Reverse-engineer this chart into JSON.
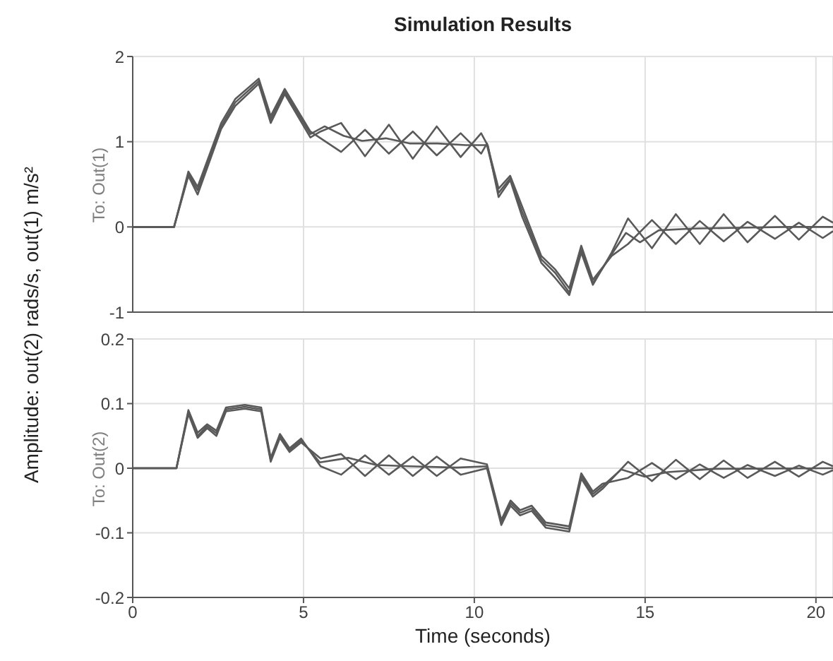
{
  "chart_data": [
    {
      "type": "line",
      "title": "Simulation Results",
      "ylabel": "Amplitude: out(2) rads/s, out(1) m/s²",
      "annotations": [
        "To: Out(1)"
      ],
      "xlim": [
        0,
        20.5
      ],
      "xticks": [
        0,
        5,
        10,
        15,
        20
      ],
      "ylim": [
        -1,
        2
      ],
      "yticks": [
        -1,
        0,
        1,
        2
      ],
      "grid": true,
      "tick_labels": "y",
      "marker": "none",
      "line_style": "solid",
      "legend": false,
      "series": [
        {
          "color": "#595959",
          "x": [
            0,
            1.21,
            1.63,
            1.9,
            2.59,
            3.0,
            3.69,
            4.04,
            4.45,
            5.2,
            5.62,
            6.17,
            6.72,
            7.41,
            8.1,
            8.93,
            9.75,
            10.37,
            10.71,
            11.05,
            11.4,
            11.96,
            12.37,
            12.78,
            13.13,
            13.47,
            14.02,
            14.44,
            14.85,
            15.4,
            16.36,
            17.74,
            19.12,
            20.5
          ],
          "values": [
            0,
            0,
            0.62,
            0.43,
            1.18,
            1.46,
            1.71,
            1.26,
            1.59,
            1.09,
            1.18,
            1.07,
            1.01,
            1.04,
            0.98,
            0.98,
            0.96,
            0.96,
            0.4,
            0.57,
            0.18,
            -0.38,
            -0.54,
            -0.77,
            -0.27,
            -0.66,
            -0.32,
            -0.07,
            -0.18,
            -0.04,
            -0.02,
            -0.01,
            0,
            0
          ]
        },
        {
          "color": "#595959",
          "x": [
            0,
            1.21,
            1.63,
            1.9,
            2.59,
            3.0,
            3.69,
            4.04,
            4.45,
            5.2,
            5.5,
            6.1,
            6.8,
            7.5,
            8.2,
            8.9,
            9.6,
            10.2,
            10.4,
            10.71,
            11.05,
            11.4,
            11.96,
            12.37,
            12.78,
            13.13,
            13.47,
            14.02,
            14.5,
            15.2,
            15.9,
            16.6,
            17.3,
            18.0,
            18.8,
            19.5,
            20.2,
            20.5
          ],
          "values": [
            0,
            0,
            0.6,
            0.38,
            1.15,
            1.42,
            1.68,
            1.22,
            1.56,
            1.05,
            1.12,
            1.22,
            0.83,
            1.2,
            0.8,
            1.18,
            0.82,
            1.1,
            0.95,
            0.35,
            0.55,
            0.12,
            -0.42,
            -0.6,
            -0.8,
            -0.3,
            -0.68,
            -0.3,
            0.1,
            -0.25,
            0.15,
            -0.2,
            0.15,
            -0.18,
            0.13,
            -0.15,
            0.12,
            0.05
          ]
        },
        {
          "color": "#595959",
          "x": [
            0,
            1.21,
            1.63,
            1.9,
            2.59,
            3.0,
            3.69,
            4.04,
            4.45,
            5.2,
            6.1,
            6.8,
            7.5,
            8.2,
            8.9,
            9.6,
            10.2,
            10.37,
            10.71,
            11.05,
            11.4,
            11.96,
            12.37,
            12.78,
            13.13,
            13.47,
            14.02,
            14.5,
            15.2,
            15.9,
            16.6,
            17.3,
            18.0,
            18.8,
            19.5,
            20.2,
            20.5
          ],
          "values": [
            0,
            0,
            0.65,
            0.47,
            1.22,
            1.5,
            1.74,
            1.3,
            1.62,
            1.12,
            0.88,
            1.14,
            0.86,
            1.12,
            0.84,
            1.1,
            0.86,
            0.98,
            0.45,
            0.6,
            0.24,
            -0.34,
            -0.5,
            -0.72,
            -0.22,
            -0.62,
            -0.34,
            -0.2,
            0.08,
            -0.2,
            0.07,
            -0.17,
            0.06,
            -0.14,
            0.05,
            -0.13,
            -0.05
          ]
        }
      ]
    },
    {
      "type": "line",
      "xlabel": "Time (seconds)",
      "annotations": [
        "To: Out(2)"
      ],
      "xlim": [
        0,
        20.5
      ],
      "xticks": [
        0,
        5,
        10,
        15,
        20
      ],
      "ylim": [
        -0.2,
        0.2
      ],
      "yticks": [
        -0.2,
        -0.1,
        0,
        0.1,
        0.2
      ],
      "grid": true,
      "marker": "none",
      "line_style": "solid",
      "legend": false,
      "series": [
        {
          "color": "#595959",
          "x": [
            0,
            1.28,
            1.63,
            1.9,
            2.18,
            2.45,
            2.73,
            3.28,
            3.76,
            4.04,
            4.31,
            4.59,
            4.93,
            5.48,
            6.31,
            7.13,
            8.1,
            9.48,
            10.37,
            10.79,
            11.06,
            11.34,
            11.68,
            12.09,
            12.78,
            13.13,
            13.47,
            13.75,
            14.3,
            14.99,
            15.67,
            17.05,
            20.5
          ],
          "values": [
            0,
            0,
            0.087,
            0.05,
            0.065,
            0.054,
            0.091,
            0.095,
            0.091,
            0.013,
            0.05,
            0.028,
            0.043,
            0.009,
            0.016,
            0.005,
            0.003,
            0.001,
            0.003,
            -0.084,
            -0.054,
            -0.069,
            -0.062,
            -0.088,
            -0.094,
            -0.012,
            -0.04,
            -0.028,
            -0.002,
            -0.013,
            -0.006,
            -0.001,
            0
          ]
        },
        {
          "color": "#595959",
          "x": [
            0,
            1.28,
            1.63,
            1.9,
            2.18,
            2.45,
            2.73,
            3.28,
            3.76,
            4.04,
            4.31,
            4.59,
            4.93,
            5.5,
            6.1,
            6.8,
            7.5,
            8.2,
            8.9,
            9.6,
            10.37,
            10.79,
            11.06,
            11.34,
            11.68,
            12.09,
            12.78,
            13.13,
            13.47,
            13.75,
            14.5,
            15.2,
            15.9,
            16.6,
            17.3,
            18.0,
            18.8,
            19.5,
            20.2,
            20.5
          ],
          "values": [
            0,
            0,
            0.084,
            0.047,
            0.062,
            0.05,
            0.088,
            0.092,
            0.088,
            0.01,
            0.047,
            0.025,
            0.04,
            0.015,
            0.022,
            -0.012,
            0.02,
            -0.012,
            0.018,
            -0.01,
            0,
            -0.088,
            -0.058,
            -0.073,
            -0.066,
            -0.092,
            -0.098,
            -0.016,
            -0.044,
            -0.032,
            0.01,
            -0.02,
            0.013,
            -0.017,
            0.012,
            -0.015,
            0.01,
            -0.013,
            0.01,
            0.003
          ]
        },
        {
          "color": "#595959",
          "x": [
            0,
            1.28,
            1.63,
            1.9,
            2.18,
            2.45,
            2.73,
            3.28,
            3.76,
            4.04,
            4.31,
            4.59,
            4.93,
            5.5,
            6.1,
            6.8,
            7.5,
            8.2,
            8.9,
            9.6,
            10.37,
            10.79,
            11.06,
            11.34,
            11.68,
            12.09,
            12.78,
            13.13,
            13.47,
            13.75,
            14.5,
            15.2,
            15.9,
            16.6,
            17.3,
            18.0,
            18.8,
            19.5,
            20.2,
            20.5
          ],
          "values": [
            0,
            0,
            0.09,
            0.055,
            0.068,
            0.058,
            0.094,
            0.098,
            0.094,
            0.016,
            0.053,
            0.031,
            0.046,
            0.003,
            -0.01,
            0.02,
            -0.01,
            0.018,
            -0.012,
            0.015,
            0.006,
            -0.08,
            -0.05,
            -0.065,
            -0.058,
            -0.084,
            -0.09,
            -0.008,
            -0.036,
            -0.024,
            -0.015,
            0.008,
            -0.017,
            0.006,
            -0.015,
            0.005,
            -0.012,
            0.004,
            -0.01,
            -0.003
          ]
        }
      ]
    }
  ]
}
